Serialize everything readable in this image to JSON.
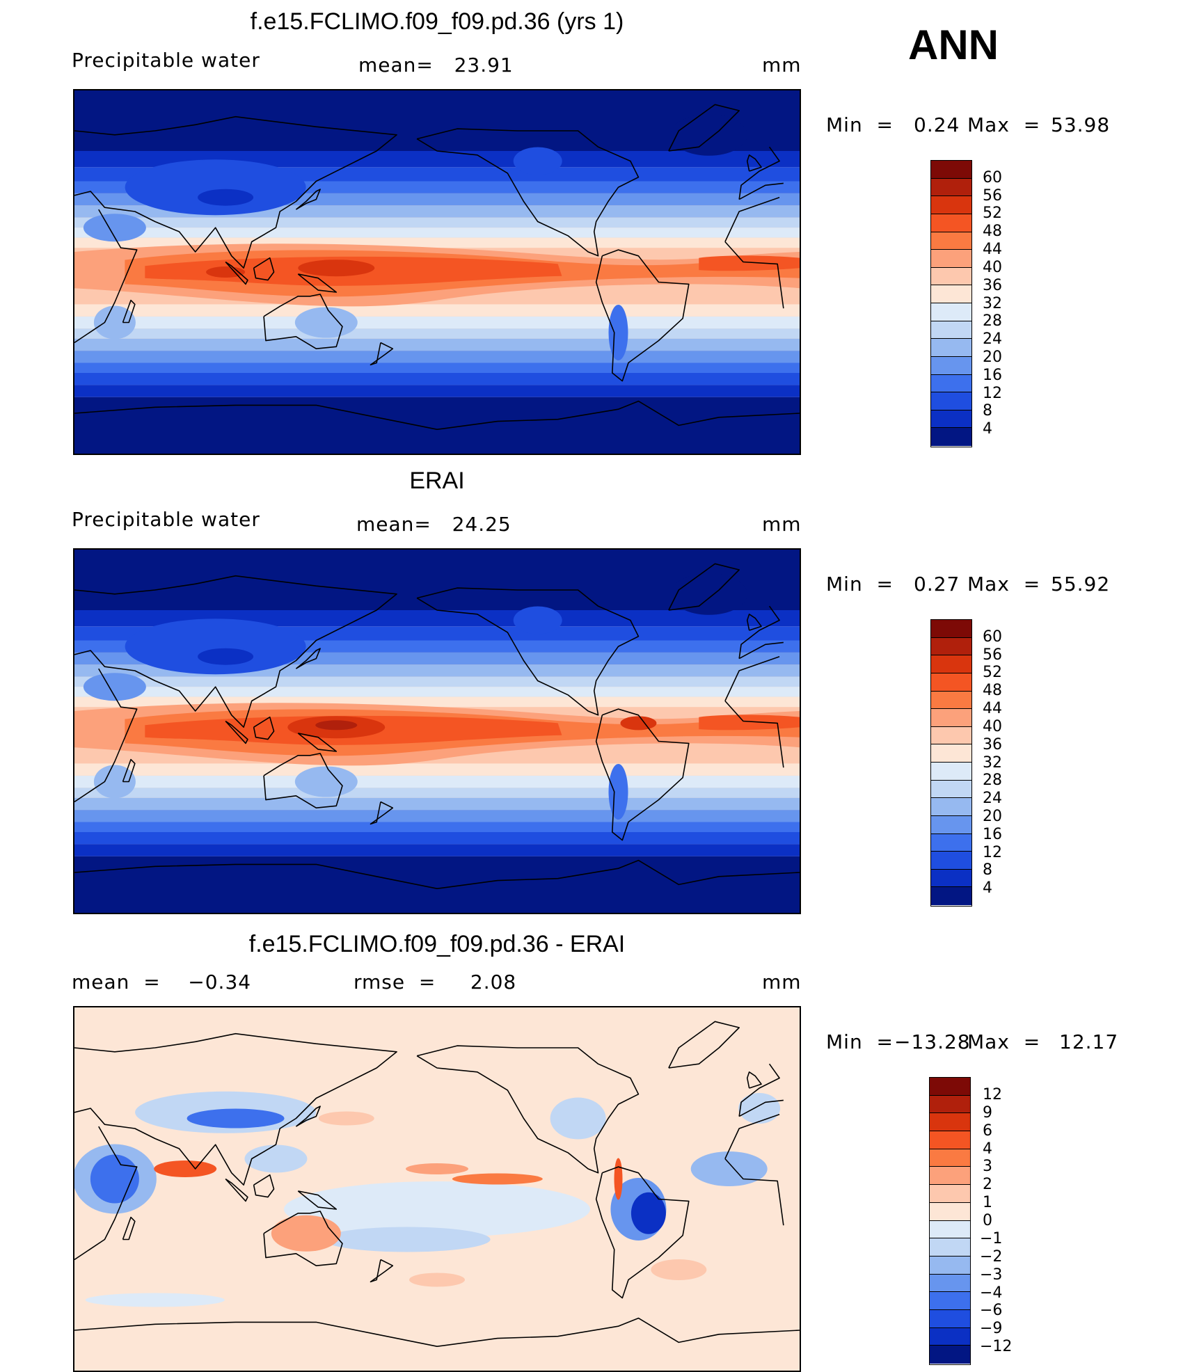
{
  "season": "ANN",
  "panels": [
    {
      "title": "f.e15.FCLIMO.f09_f09.pd.36 (yrs 1)",
      "left_label": "Precipitable  water",
      "center_label": "mean=   23.91",
      "units": "mm",
      "min_label": "Min  =",
      "min_value": "0.24",
      "max_label": "Max  =",
      "max_value": "53.98",
      "scale": "abs"
    },
    {
      "title": "ERAI",
      "left_label": "Precipitable  water",
      "center_label": "mean=   24.25",
      "units": "mm",
      "min_label": "Min  =",
      "min_value": "0.27",
      "max_label": "Max  =",
      "max_value": "55.92",
      "scale": "abs"
    },
    {
      "title": "f.e15.FCLIMO.f09_f09.pd.36 - ERAI",
      "left_label": "mean  =    −0.34",
      "center_label": "rmse  =     2.08",
      "units": "mm",
      "min_label": "Min  =",
      "min_value": "−13.28",
      "max_label": "Max  =",
      "max_value": "12.17",
      "scale": "diff"
    }
  ],
  "colorbars": {
    "abs": {
      "labels": [
        "60",
        "56",
        "52",
        "48",
        "44",
        "40",
        "36",
        "32",
        "28",
        "24",
        "20",
        "16",
        "12",
        "8",
        "4"
      ],
      "colors": [
        "#7d0a06",
        "#b0200c",
        "#d9350e",
        "#f45523",
        "#fa7a42",
        "#fca17b",
        "#fdc8ae",
        "#fde6d6",
        "#ddeaf8",
        "#c1d7f4",
        "#96b9f0",
        "#6795ee",
        "#3d70ed",
        "#1f4ee0",
        "#0b30c4",
        "#021683"
      ]
    },
    "diff": {
      "labels": [
        "12",
        "9",
        "6",
        "4",
        "3",
        "2",
        "1",
        "0",
        "−1",
        "−2",
        "−3",
        "−4",
        "−6",
        "−9",
        "−12"
      ],
      "colors": [
        "#7d0a06",
        "#b0200c",
        "#d9350e",
        "#f45523",
        "#fa7a42",
        "#fca17b",
        "#fdc8ae",
        "#fde6d6",
        "#ddeaf8",
        "#c1d7f4",
        "#96b9f0",
        "#6795ee",
        "#3d70ed",
        "#1f4ee0",
        "#0b30c4",
        "#021683"
      ]
    }
  },
  "chart_data": [
    {
      "type": "heatmap",
      "title": "f.e15.FCLIMO.f09_f09.pd.36 (yrs 1)",
      "variable": "Precipitable water",
      "units": "mm",
      "mean": 23.91,
      "min": 0.24,
      "max": 53.98,
      "contour_levels": [
        4,
        8,
        12,
        16,
        20,
        24,
        28,
        32,
        36,
        40,
        44,
        48,
        52,
        56,
        60
      ],
      "projection": "cylindrical equidistant, centered 180°"
    },
    {
      "type": "heatmap",
      "title": "ERAI",
      "variable": "Precipitable water",
      "units": "mm",
      "mean": 24.25,
      "min": 0.27,
      "max": 55.92,
      "contour_levels": [
        4,
        8,
        12,
        16,
        20,
        24,
        28,
        32,
        36,
        40,
        44,
        48,
        52,
        56,
        60
      ],
      "projection": "cylindrical equidistant, centered 180°"
    },
    {
      "type": "heatmap",
      "title": "f.e15.FCLIMO.f09_f09.pd.36 - ERAI",
      "units": "mm",
      "mean": -0.34,
      "rmse": 2.08,
      "min": -13.28,
      "max": 12.17,
      "contour_levels": [
        -12,
        -9,
        -6,
        -4,
        -3,
        -2,
        -1,
        0,
        1,
        2,
        3,
        4,
        6,
        9,
        12
      ],
      "projection": "cylindrical equidistant, centered 180°"
    }
  ]
}
